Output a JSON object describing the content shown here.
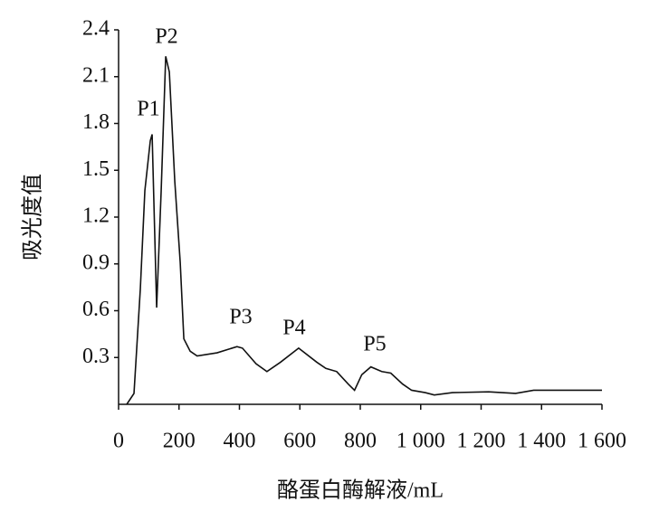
{
  "chart_data": {
    "type": "line",
    "x_label": "酪蛋白酶解液/mL",
    "y_label": "吸光度值",
    "annotations": [
      "P1",
      "P2",
      "P3",
      "P4",
      "P5"
    ],
    "x": [
      27,
      51,
      72,
      87,
      105,
      111,
      126,
      141,
      156,
      168,
      186,
      204,
      216,
      237,
      260,
      326,
      392,
      410,
      455,
      491,
      536,
      596,
      656,
      686,
      722,
      760,
      781,
      805,
      835,
      871,
      901,
      940,
      970,
      1015,
      1045,
      1105,
      1225,
      1314,
      1374,
      1494,
      1524,
      1600
    ],
    "series": [
      {
        "color": "#111111",
        "values": [
          0.0,
          0.07,
          0.74,
          1.37,
          1.69,
          1.73,
          0.62,
          1.37,
          2.23,
          2.13,
          1.43,
          0.91,
          0.42,
          0.34,
          0.31,
          0.33,
          0.37,
          0.36,
          0.26,
          0.21,
          0.27,
          0.36,
          0.27,
          0.23,
          0.21,
          0.13,
          0.09,
          0.19,
          0.24,
          0.21,
          0.2,
          0.13,
          0.09,
          0.075,
          0.06,
          0.075,
          0.08,
          0.07,
          0.09,
          0.09,
          0.09,
          0.09
        ]
      }
    ],
    "xlim": [
      0,
      1600
    ],
    "xticks": [
      0,
      200,
      400,
      600,
      800,
      {
        "value": 1000,
        "label": "1 000"
      },
      {
        "value": 1200,
        "label": "1 200"
      },
      {
        "value": 1400,
        "label": "1 400"
      },
      {
        "value": 1600,
        "label": "1 600"
      }
    ],
    "ylim": [
      0,
      2.4
    ],
    "yticks": [
      0.3,
      0.6,
      0.9,
      1.2,
      1.5,
      1.8,
      2.1,
      2.4
    ]
  }
}
